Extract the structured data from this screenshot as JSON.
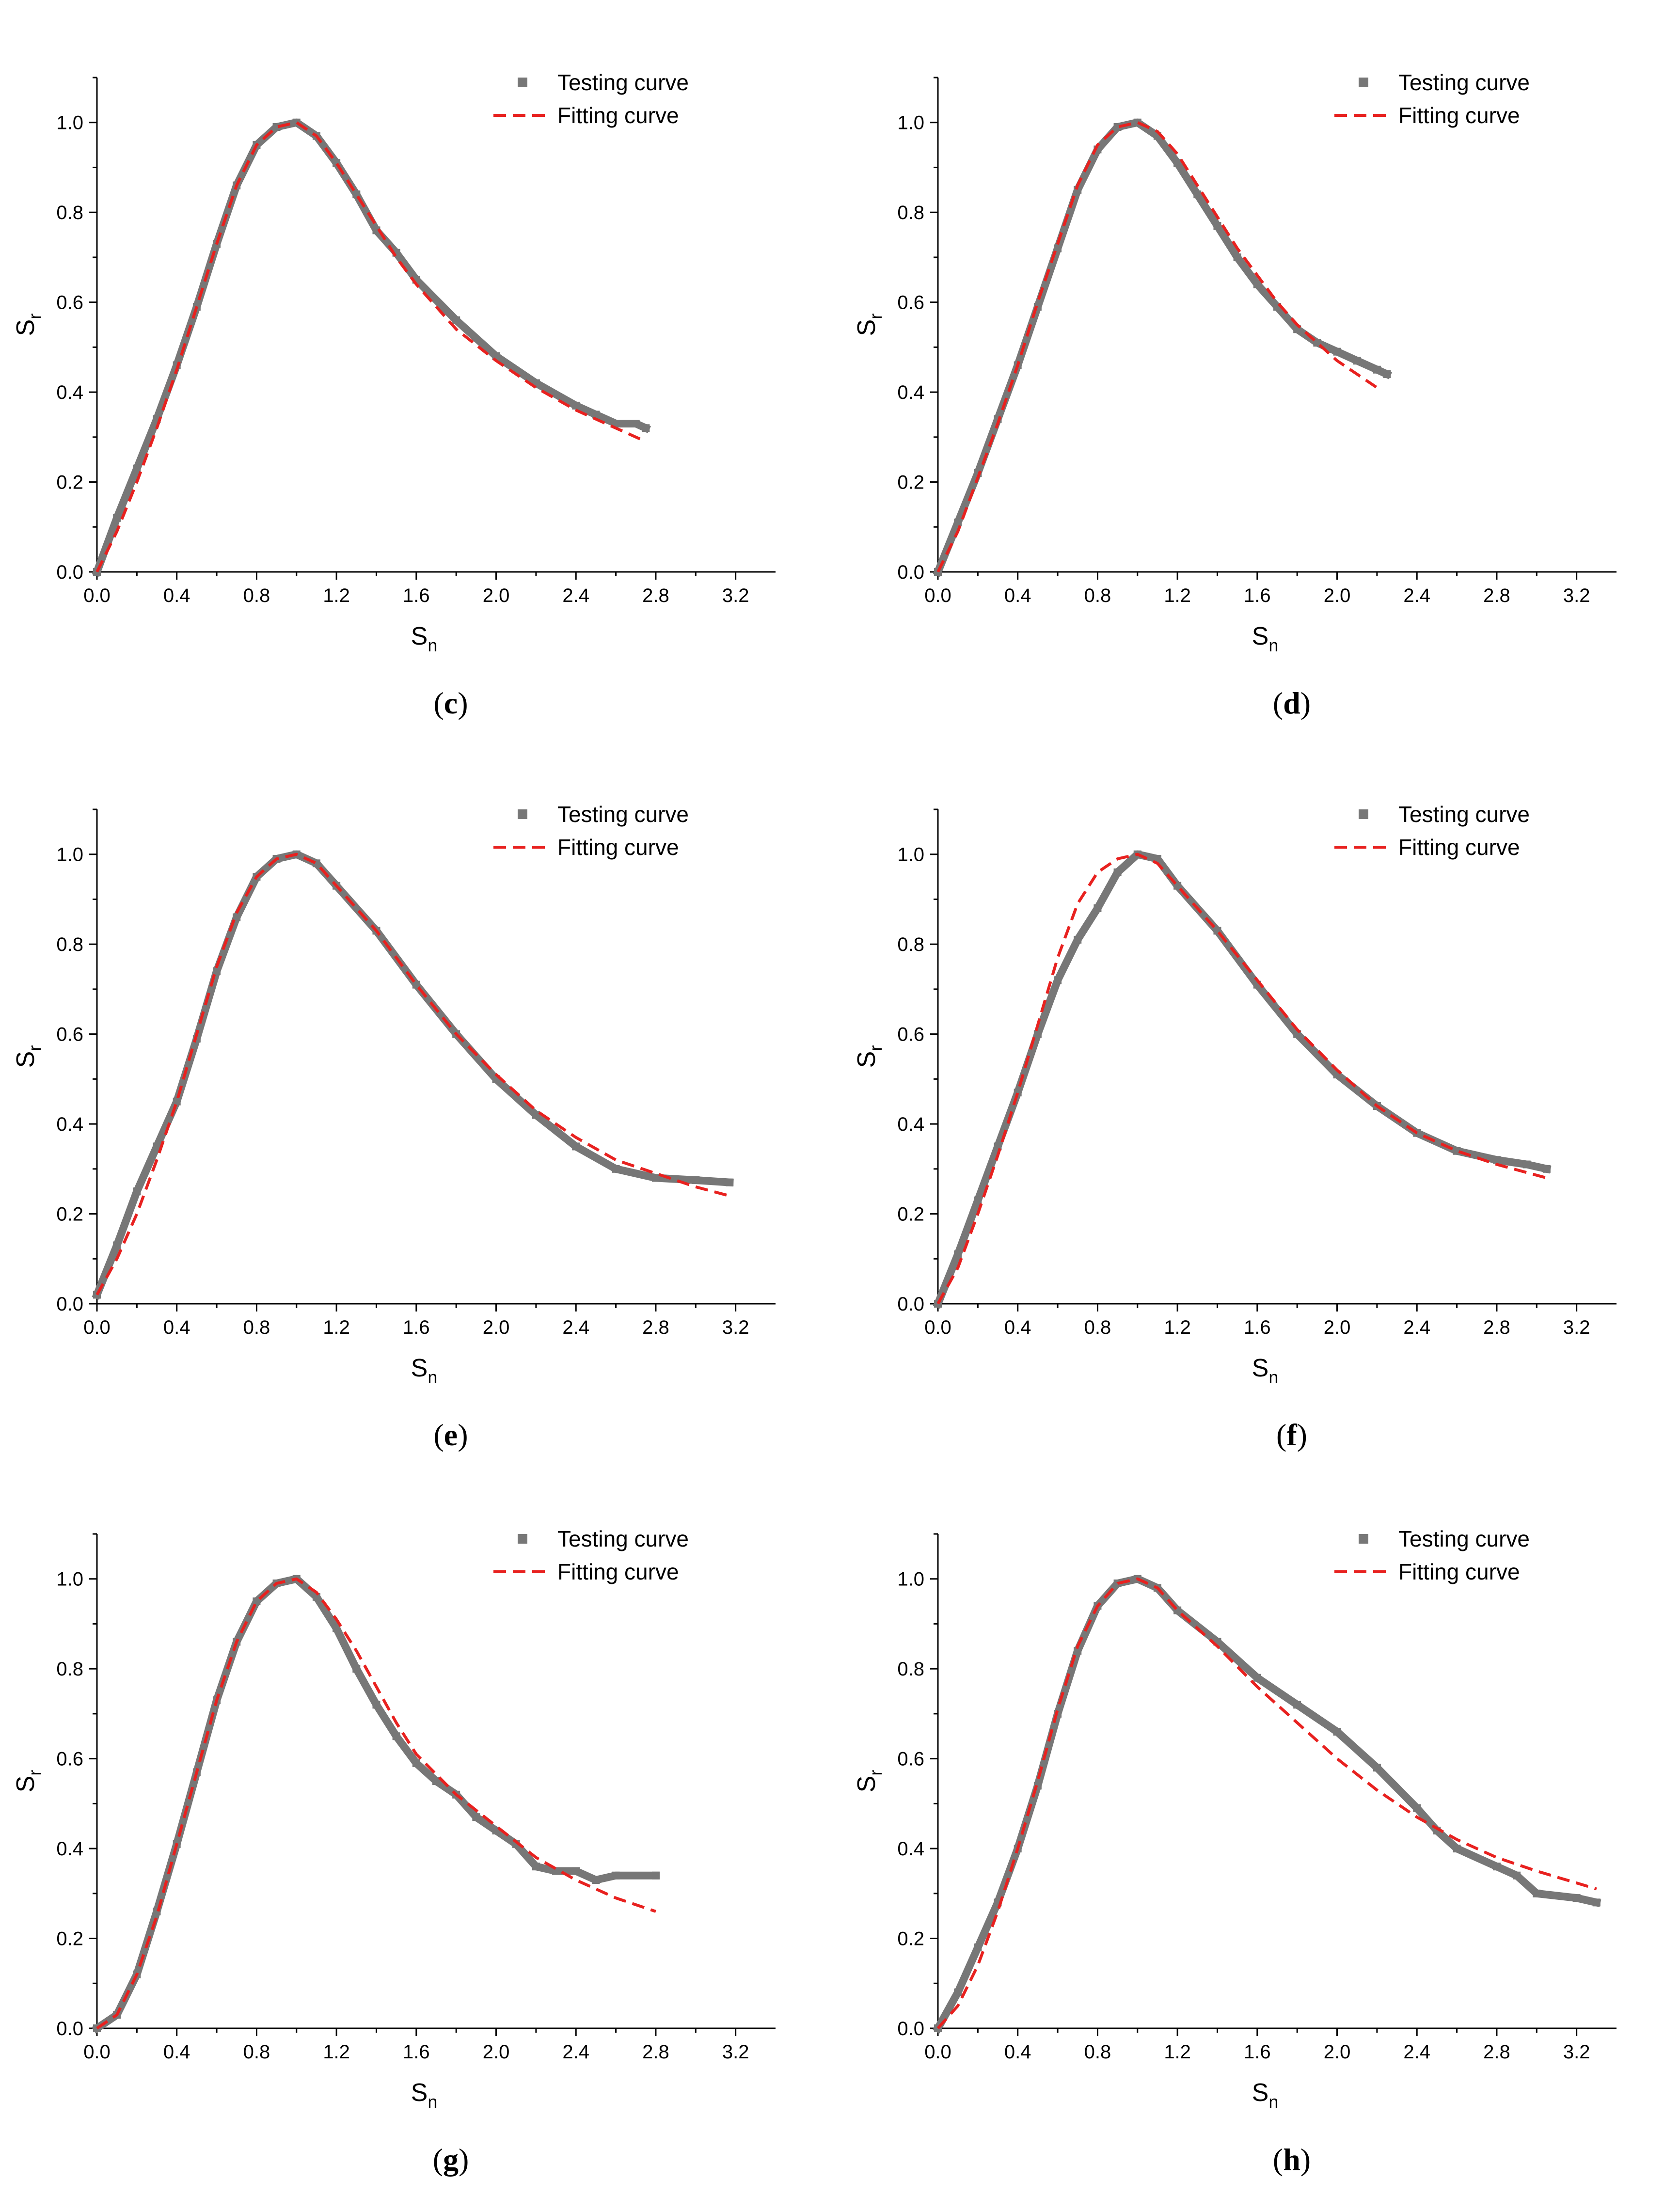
{
  "chart_data": [
    {
      "type": "line",
      "panel": "c",
      "caption": {
        "open": "(",
        "letter": "c",
        "close": ")"
      },
      "xlabel": {
        "base": "S",
        "sub": "n"
      },
      "ylabel": {
        "base": "S",
        "sub": "r"
      },
      "xlim": [
        0,
        3.4
      ],
      "ylim": [
        0,
        1.1
      ],
      "xticks": [
        "0.0",
        "0.4",
        "0.8",
        "1.2",
        "1.6",
        "2.0",
        "2.4",
        "2.8",
        "3.2"
      ],
      "yticks": [
        "0.0",
        "0.2",
        "0.4",
        "0.6",
        "0.8",
        "1.0"
      ],
      "legend": {
        "position": "top-right",
        "testing": "Testing curve",
        "fitting": "Fitting curve"
      },
      "series": [
        {
          "name": "Testing curve",
          "style": "thick-grey",
          "x": [
            0,
            0.1,
            0.2,
            0.3,
            0.4,
            0.5,
            0.6,
            0.7,
            0.8,
            0.9,
            1.0,
            1.1,
            1.2,
            1.3,
            1.4,
            1.5,
            1.6,
            1.8,
            2.0,
            2.2,
            2.4,
            2.5,
            2.6,
            2.7,
            2.75
          ],
          "y": [
            0.0,
            0.12,
            0.23,
            0.34,
            0.46,
            0.59,
            0.73,
            0.86,
            0.95,
            0.99,
            1.0,
            0.97,
            0.91,
            0.84,
            0.76,
            0.71,
            0.65,
            0.56,
            0.48,
            0.42,
            0.37,
            0.35,
            0.33,
            0.33,
            0.32
          ]
        },
        {
          "name": "Fitting curve",
          "style": "dashed-red",
          "x": [
            0,
            0.1,
            0.2,
            0.3,
            0.4,
            0.5,
            0.6,
            0.7,
            0.8,
            0.9,
            1.0,
            1.1,
            1.2,
            1.3,
            1.4,
            1.5,
            1.6,
            1.8,
            2.0,
            2.2,
            2.4,
            2.6,
            2.75
          ],
          "y": [
            0.0,
            0.09,
            0.2,
            0.32,
            0.45,
            0.59,
            0.73,
            0.86,
            0.95,
            0.99,
            1.0,
            0.97,
            0.91,
            0.84,
            0.77,
            0.7,
            0.64,
            0.54,
            0.47,
            0.41,
            0.36,
            0.32,
            0.29
          ]
        }
      ]
    },
    {
      "type": "line",
      "panel": "d",
      "caption": {
        "open": "(",
        "letter": "d",
        "close": ")"
      },
      "xlabel": {
        "base": "S",
        "sub": "n"
      },
      "ylabel": {
        "base": "S",
        "sub": "r"
      },
      "xlim": [
        0,
        3.4
      ],
      "ylim": [
        0,
        1.1
      ],
      "xticks": [
        "0.0",
        "0.4",
        "0.8",
        "1.2",
        "1.6",
        "2.0",
        "2.4",
        "2.8",
        "3.2"
      ],
      "yticks": [
        "0.0",
        "0.2",
        "0.4",
        "0.6",
        "0.8",
        "1.0"
      ],
      "legend": {
        "position": "top-right",
        "testing": "Testing curve",
        "fitting": "Fitting curve"
      },
      "series": [
        {
          "name": "Testing curve",
          "style": "thick-grey",
          "x": [
            0,
            0.1,
            0.2,
            0.3,
            0.4,
            0.5,
            0.6,
            0.7,
            0.8,
            0.9,
            1.0,
            1.1,
            1.2,
            1.3,
            1.4,
            1.5,
            1.6,
            1.7,
            1.8,
            1.9,
            2.0,
            2.1,
            2.2,
            2.25
          ],
          "y": [
            0.0,
            0.11,
            0.22,
            0.34,
            0.46,
            0.59,
            0.72,
            0.85,
            0.94,
            0.99,
            1.0,
            0.97,
            0.91,
            0.84,
            0.77,
            0.7,
            0.64,
            0.59,
            0.54,
            0.51,
            0.49,
            0.47,
            0.45,
            0.44
          ]
        },
        {
          "name": "Fitting curve",
          "style": "dashed-red",
          "x": [
            0,
            0.1,
            0.2,
            0.3,
            0.4,
            0.5,
            0.6,
            0.7,
            0.8,
            0.9,
            1.0,
            1.1,
            1.2,
            1.3,
            1.4,
            1.5,
            1.6,
            1.7,
            1.8,
            1.9,
            2.0,
            2.1,
            2.2
          ],
          "y": [
            0.0,
            0.09,
            0.21,
            0.33,
            0.46,
            0.6,
            0.73,
            0.86,
            0.95,
            0.99,
            1.0,
            0.98,
            0.93,
            0.86,
            0.79,
            0.72,
            0.66,
            0.6,
            0.55,
            0.51,
            0.47,
            0.44,
            0.41
          ]
        }
      ]
    },
    {
      "type": "line",
      "panel": "e",
      "caption": {
        "open": "(",
        "letter": "e",
        "close": ")"
      },
      "xlabel": {
        "base": "S",
        "sub": "n"
      },
      "ylabel": {
        "base": "S",
        "sub": "r"
      },
      "xlim": [
        0,
        3.4
      ],
      "ylim": [
        0,
        1.1
      ],
      "xticks": [
        "0.0",
        "0.4",
        "0.8",
        "1.2",
        "1.6",
        "2.0",
        "2.4",
        "2.8",
        "3.2"
      ],
      "yticks": [
        "0.0",
        "0.2",
        "0.4",
        "0.6",
        "0.8",
        "1.0"
      ],
      "legend": {
        "position": "top-right",
        "testing": "Testing curve",
        "fitting": "Fitting curve"
      },
      "series": [
        {
          "name": "Testing curve",
          "style": "thick-grey",
          "x": [
            0,
            0.1,
            0.2,
            0.3,
            0.4,
            0.5,
            0.6,
            0.7,
            0.8,
            0.9,
            1.0,
            1.1,
            1.2,
            1.4,
            1.6,
            1.8,
            2.0,
            2.2,
            2.4,
            2.6,
            2.8,
            3.0,
            3.17
          ],
          "y": [
            0.02,
            0.13,
            0.25,
            0.35,
            0.45,
            0.59,
            0.74,
            0.86,
            0.95,
            0.99,
            1.0,
            0.98,
            0.93,
            0.83,
            0.71,
            0.6,
            0.5,
            0.42,
            0.35,
            0.3,
            0.28,
            0.275,
            0.27
          ]
        },
        {
          "name": "Fitting curve",
          "style": "dashed-red",
          "x": [
            0,
            0.1,
            0.2,
            0.3,
            0.4,
            0.5,
            0.6,
            0.7,
            0.8,
            0.9,
            1.0,
            1.1,
            1.2,
            1.4,
            1.6,
            1.8,
            2.0,
            2.2,
            2.4,
            2.6,
            2.8,
            3.0,
            3.17
          ],
          "y": [
            0.02,
            0.1,
            0.2,
            0.32,
            0.45,
            0.6,
            0.75,
            0.87,
            0.95,
            0.99,
            1.0,
            0.98,
            0.93,
            0.83,
            0.71,
            0.6,
            0.51,
            0.43,
            0.37,
            0.32,
            0.29,
            0.26,
            0.24
          ]
        }
      ]
    },
    {
      "type": "line",
      "panel": "f",
      "caption": {
        "open": "(",
        "letter": "f",
        "close": ")"
      },
      "xlabel": {
        "base": "S",
        "sub": "n"
      },
      "ylabel": {
        "base": "S",
        "sub": "r"
      },
      "xlim": [
        0,
        3.4
      ],
      "ylim": [
        0,
        1.1
      ],
      "xticks": [
        "0.0",
        "0.4",
        "0.8",
        "1.2",
        "1.6",
        "2.0",
        "2.4",
        "2.8",
        "3.2"
      ],
      "yticks": [
        "0.0",
        "0.2",
        "0.4",
        "0.6",
        "0.8",
        "1.0"
      ],
      "legend": {
        "position": "top-right",
        "testing": "Testing curve",
        "fitting": "Fitting curve"
      },
      "series": [
        {
          "name": "Testing curve",
          "style": "thick-grey",
          "x": [
            0,
            0.1,
            0.2,
            0.3,
            0.4,
            0.5,
            0.6,
            0.7,
            0.8,
            0.9,
            1.0,
            1.1,
            1.2,
            1.4,
            1.6,
            1.8,
            2.0,
            2.2,
            2.4,
            2.6,
            2.8,
            2.95,
            3.05
          ],
          "y": [
            0.0,
            0.11,
            0.23,
            0.35,
            0.47,
            0.6,
            0.72,
            0.81,
            0.88,
            0.96,
            1.0,
            0.99,
            0.93,
            0.83,
            0.71,
            0.6,
            0.51,
            0.44,
            0.38,
            0.34,
            0.32,
            0.31,
            0.3
          ]
        },
        {
          "name": "Fitting curve",
          "style": "dashed-red",
          "x": [
            0,
            0.1,
            0.2,
            0.3,
            0.4,
            0.5,
            0.6,
            0.7,
            0.8,
            0.9,
            1.0,
            1.1,
            1.2,
            1.4,
            1.6,
            1.8,
            2.0,
            2.2,
            2.4,
            2.6,
            2.8,
            3.05
          ],
          "y": [
            0.0,
            0.08,
            0.2,
            0.33,
            0.47,
            0.62,
            0.77,
            0.89,
            0.96,
            0.99,
            1.0,
            0.98,
            0.93,
            0.83,
            0.72,
            0.61,
            0.52,
            0.44,
            0.38,
            0.34,
            0.31,
            0.28
          ]
        }
      ]
    },
    {
      "type": "line",
      "panel": "g",
      "caption": {
        "open": "(",
        "letter": "g",
        "close": ")"
      },
      "xlabel": {
        "base": "S",
        "sub": "n"
      },
      "ylabel": {
        "base": "S",
        "sub": "r"
      },
      "xlim": [
        0,
        3.4
      ],
      "ylim": [
        0,
        1.1
      ],
      "xticks": [
        "0.0",
        "0.4",
        "0.8",
        "1.2",
        "1.6",
        "2.0",
        "2.4",
        "2.8",
        "3.2"
      ],
      "yticks": [
        "0.0",
        "0.2",
        "0.4",
        "0.6",
        "0.8",
        "1.0"
      ],
      "legend": {
        "position": "top-right",
        "testing": "Testing curve",
        "fitting": "Fitting curve"
      },
      "series": [
        {
          "name": "Testing curve",
          "style": "thick-grey",
          "x": [
            0,
            0.1,
            0.2,
            0.3,
            0.4,
            0.5,
            0.6,
            0.7,
            0.8,
            0.9,
            1.0,
            1.1,
            1.2,
            1.3,
            1.4,
            1.5,
            1.6,
            1.7,
            1.8,
            1.9,
            2.0,
            2.1,
            2.2,
            2.3,
            2.4,
            2.5,
            2.6,
            2.8
          ],
          "y": [
            0.0,
            0.03,
            0.12,
            0.26,
            0.41,
            0.57,
            0.73,
            0.86,
            0.95,
            0.99,
            1.0,
            0.96,
            0.89,
            0.8,
            0.72,
            0.65,
            0.59,
            0.55,
            0.52,
            0.47,
            0.44,
            0.41,
            0.36,
            0.35,
            0.35,
            0.33,
            0.34,
            0.34
          ]
        },
        {
          "name": "Fitting curve",
          "style": "dashed-red",
          "x": [
            0,
            0.1,
            0.2,
            0.3,
            0.4,
            0.5,
            0.6,
            0.7,
            0.8,
            0.9,
            1.0,
            1.1,
            1.2,
            1.3,
            1.4,
            1.5,
            1.6,
            1.8,
            2.0,
            2.2,
            2.4,
            2.6,
            2.8
          ],
          "y": [
            0.0,
            0.03,
            0.12,
            0.25,
            0.41,
            0.57,
            0.73,
            0.86,
            0.95,
            0.99,
            1.0,
            0.97,
            0.91,
            0.84,
            0.76,
            0.68,
            0.61,
            0.52,
            0.45,
            0.38,
            0.33,
            0.29,
            0.26
          ]
        }
      ]
    },
    {
      "type": "line",
      "panel": "h",
      "caption": {
        "open": "(",
        "letter": "h",
        "close": ")"
      },
      "xlabel": {
        "base": "S",
        "sub": "n"
      },
      "ylabel": {
        "base": "S",
        "sub": "r"
      },
      "xlim": [
        0,
        3.4
      ],
      "ylim": [
        0,
        1.1
      ],
      "xticks": [
        "0.0",
        "0.4",
        "0.8",
        "1.2",
        "1.6",
        "2.0",
        "2.4",
        "2.8",
        "3.2"
      ],
      "yticks": [
        "0.0",
        "0.2",
        "0.4",
        "0.6",
        "0.8",
        "1.0"
      ],
      "legend": {
        "position": "top-right",
        "testing": "Testing curve",
        "fitting": "Fitting curve"
      },
      "series": [
        {
          "name": "Testing curve",
          "style": "thick-grey",
          "x": [
            0,
            0.1,
            0.2,
            0.3,
            0.4,
            0.5,
            0.6,
            0.7,
            0.8,
            0.9,
            1.0,
            1.1,
            1.2,
            1.4,
            1.6,
            1.8,
            2.0,
            2.2,
            2.4,
            2.5,
            2.6,
            2.8,
            2.9,
            3.0,
            3.2,
            3.3
          ],
          "y": [
            0.0,
            0.08,
            0.18,
            0.28,
            0.4,
            0.54,
            0.7,
            0.84,
            0.94,
            0.99,
            1.0,
            0.98,
            0.93,
            0.86,
            0.78,
            0.72,
            0.66,
            0.58,
            0.49,
            0.44,
            0.4,
            0.36,
            0.34,
            0.3,
            0.29,
            0.28
          ]
        },
        {
          "name": "Fitting curve",
          "style": "dashed-red",
          "x": [
            0,
            0.1,
            0.2,
            0.3,
            0.4,
            0.5,
            0.6,
            0.7,
            0.8,
            0.9,
            1.0,
            1.1,
            1.2,
            1.4,
            1.6,
            1.8,
            2.0,
            2.2,
            2.4,
            2.6,
            2.8,
            3.0,
            3.3
          ],
          "y": [
            0.0,
            0.05,
            0.14,
            0.26,
            0.4,
            0.55,
            0.71,
            0.85,
            0.94,
            0.99,
            1.0,
            0.98,
            0.93,
            0.85,
            0.76,
            0.68,
            0.6,
            0.53,
            0.47,
            0.42,
            0.38,
            0.35,
            0.31
          ]
        }
      ]
    }
  ],
  "colors": {
    "testing": "#777777",
    "fitting": "#e8211f",
    "axis": "#000000"
  }
}
